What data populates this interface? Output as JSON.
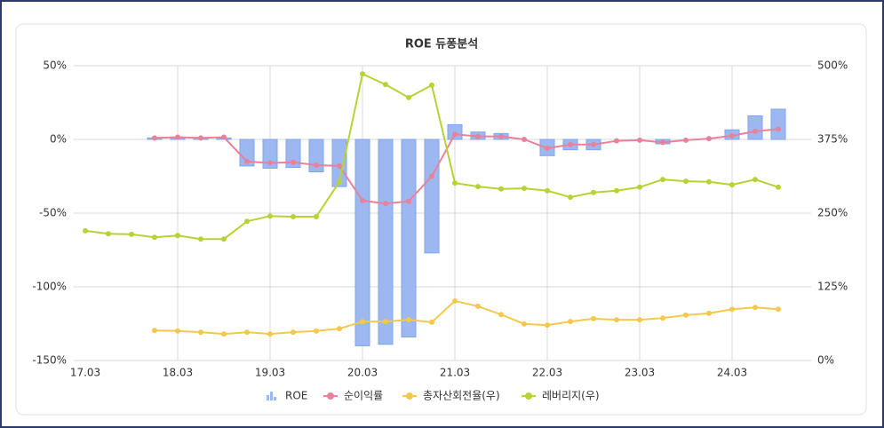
{
  "chart_data": {
    "type": "bar",
    "title": "ROE 듀퐁분석",
    "categories": [
      "17.03",
      null,
      null,
      null,
      "18.03",
      null,
      null,
      null,
      "19.03",
      null,
      null,
      null,
      "20.03",
      null,
      null,
      null,
      "21.03",
      null,
      null,
      null,
      "22.03",
      null,
      null,
      null,
      "23.03",
      null,
      null,
      null,
      "24.03",
      null,
      null
    ],
    "series": [
      {
        "name": "ROE",
        "type": "bar",
        "color": "#9db8f0",
        "values": [
          null,
          null,
          null,
          1,
          1,
          1,
          1,
          -18,
          -19.5,
          -19,
          -22,
          -32,
          -140,
          -139,
          -134,
          -77,
          10,
          5,
          4,
          0,
          -11,
          -7,
          -7,
          0,
          0,
          -3,
          0,
          0,
          6.5,
          16,
          20.5
        ]
      },
      {
        "name": "순이익률",
        "type": "line",
        "color": "#e8829a",
        "values": [
          null,
          null,
          null,
          1,
          1.5,
          1,
          1.5,
          -15,
          -16,
          -15.5,
          -17.5,
          -18,
          -41.5,
          -43.5,
          -42,
          -25,
          3.5,
          2,
          2,
          0,
          -6,
          -3.5,
          -3.5,
          -1,
          -0.5,
          -2,
          -0.5,
          0.5,
          2.5,
          5.5,
          7
        ]
      },
      {
        "name": "총자산회전율(우)",
        "type": "line",
        "axis": "y2",
        "color": "#f2c94c",
        "values": [
          null,
          null,
          null,
          51,
          50,
          48,
          45,
          48,
          45,
          48,
          50,
          54,
          66,
          66,
          69,
          65,
          101,
          92,
          78,
          62,
          60,
          66,
          71,
          69,
          69,
          72,
          77,
          80,
          87,
          90,
          87
        ]
      },
      {
        "name": "레버리지(우)",
        "type": "line",
        "axis": "y2",
        "color": "#b5d334",
        "values": [
          220,
          215,
          214,
          209,
          212,
          206,
          206,
          236,
          245,
          244,
          244,
          303,
          486,
          468,
          446,
          467,
          301,
          295,
          291,
          292,
          288,
          277,
          285,
          288,
          294,
          307,
          304,
          303,
          298,
          307,
          294
        ]
      }
    ],
    "ylim": [
      -150,
      50
    ],
    "yticks": [
      {
        "value": 50,
        "label": "50%"
      },
      {
        "value": 0,
        "label": "0%"
      },
      {
        "value": -50,
        "label": "-50%"
      },
      {
        "value": -100,
        "label": "-100%"
      },
      {
        "value": -150,
        "label": "-150%"
      }
    ],
    "y2lim": [
      0,
      500
    ],
    "y2ticks": [
      {
        "value": 500,
        "label": "500%"
      },
      {
        "value": 375,
        "label": "375%"
      },
      {
        "value": 250,
        "label": "250%"
      },
      {
        "value": 125,
        "label": "125%"
      },
      {
        "value": 0,
        "label": "0%"
      }
    ],
    "grid": true,
    "legend": "bottom"
  }
}
